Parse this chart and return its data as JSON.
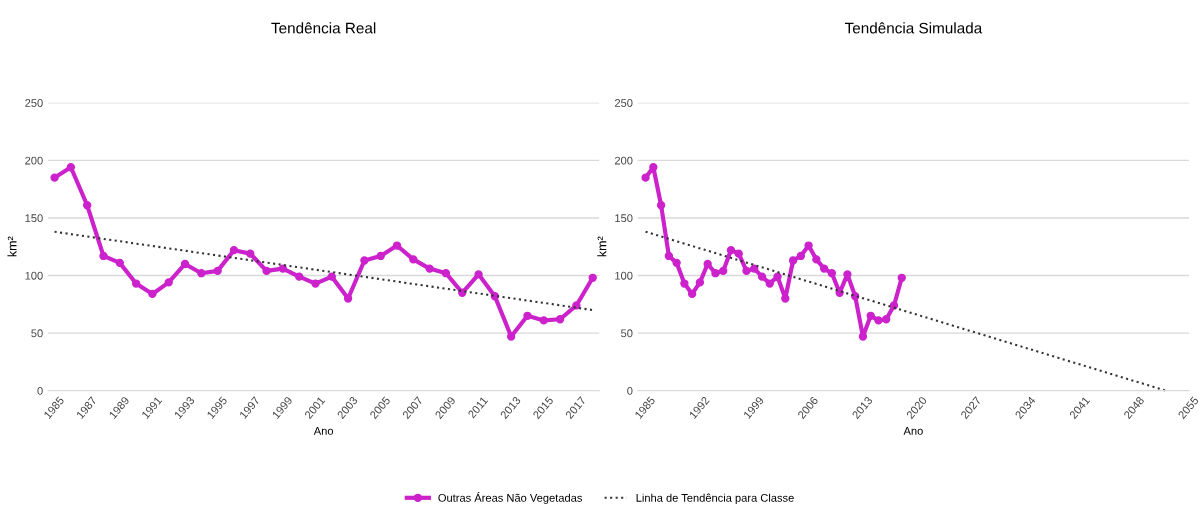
{
  "chart_data": [
    {
      "type": "line",
      "title": "Tendência Real",
      "xlabel": "Ano",
      "ylabel": "km²",
      "xlim": [
        1984.6,
        2018.4
      ],
      "xticks": [
        1985,
        1987,
        1989,
        1991,
        1993,
        1995,
        1997,
        1999,
        2001,
        2003,
        2005,
        2007,
        2009,
        2011,
        2013,
        2015,
        2017
      ],
      "ylim": [
        0,
        250
      ],
      "yticks": [
        0,
        50,
        100,
        150,
        200,
        250
      ],
      "grid": "y",
      "legend": "bottom",
      "x": [
        1985,
        1986,
        1987,
        1988,
        1989,
        1990,
        1991,
        1992,
        1993,
        1994,
        1995,
        1996,
        1997,
        1998,
        1999,
        2000,
        2001,
        2002,
        2003,
        2004,
        2005,
        2006,
        2007,
        2008,
        2009,
        2010,
        2011,
        2012,
        2013,
        2014,
        2015,
        2016,
        2017,
        2018
      ],
      "series": [
        {
          "name": "Outras Áreas Não Vegetadas",
          "color": "#cc22cc",
          "marker": "circle",
          "line_style": "solid",
          "values": [
            185,
            194,
            161,
            117,
            111,
            93,
            84,
            94,
            110,
            102,
            104,
            122,
            119,
            104,
            106,
            99,
            93,
            99,
            80,
            113,
            117,
            126,
            114,
            106,
            102,
            85,
            101,
            82,
            47,
            65,
            61,
            62,
            74,
            98
          ]
        },
        {
          "name": "Linha de Tendência para Classe",
          "color": "#333333",
          "marker": "none",
          "line_style": "dotted",
          "x": [
            1985,
            2018
          ],
          "values": [
            138,
            70
          ]
        }
      ]
    },
    {
      "type": "line",
      "title": "Tendência Simulada",
      "xlabel": "Ano",
      "ylabel": "km²",
      "xlim": [
        1984,
        2055
      ],
      "xticks": [
        1985,
        1992,
        1999,
        2006,
        2013,
        2020,
        2027,
        2034,
        2041,
        2048,
        2055
      ],
      "ylim": [
        0,
        250
      ],
      "yticks": [
        0,
        50,
        100,
        150,
        200,
        250
      ],
      "grid": "y",
      "x": [
        1985,
        1986,
        1987,
        1988,
        1989,
        1990,
        1991,
        1992,
        1993,
        1994,
        1995,
        1996,
        1997,
        1998,
        1999,
        2000,
        2001,
        2002,
        2003,
        2004,
        2005,
        2006,
        2007,
        2008,
        2009,
        2010,
        2011,
        2012,
        2013,
        2014,
        2015,
        2016,
        2017,
        2018
      ],
      "series": [
        {
          "color": "#cc22cc",
          "marker": "circle",
          "line_style": "solid",
          "values": [
            185,
            194,
            161,
            117,
            111,
            93,
            84,
            94,
            110,
            102,
            104,
            122,
            119,
            104,
            106,
            99,
            93,
            99,
            80,
            113,
            117,
            126,
            114,
            106,
            102,
            85,
            101,
            82,
            47,
            65,
            61,
            62,
            74,
            98
          ]
        },
        {
          "color": "#333333",
          "marker": "none",
          "line_style": "dotted",
          "x": [
            1985,
            2052
          ],
          "values": [
            138,
            0
          ]
        }
      ]
    }
  ]
}
